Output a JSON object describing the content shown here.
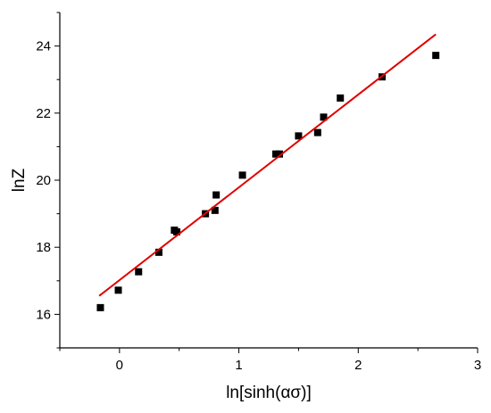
{
  "chart_data": {
    "type": "scatter",
    "title": "",
    "xlabel": "ln[sinh(ασ)]",
    "ylabel": "lnZ",
    "xlim": [
      -0.5,
      3.0
    ],
    "ylim": [
      15.0,
      25.0
    ],
    "x_ticks": [
      0,
      1,
      2,
      3
    ],
    "x_tick_labels": [
      "0",
      "1",
      "2",
      "3"
    ],
    "y_ticks": [
      16,
      18,
      20,
      22,
      24
    ],
    "y_tick_labels": [
      "16",
      "18",
      "20",
      "22",
      "24"
    ],
    "grid": false,
    "legend": "none",
    "series": [
      {
        "kind": "points",
        "marker": "square",
        "color": "#000000",
        "x": [
          -0.16,
          -0.01,
          0.16,
          0.33,
          0.46,
          0.48,
          0.72,
          0.8,
          0.81,
          1.03,
          1.31,
          1.34,
          1.5,
          1.66,
          1.71,
          1.85,
          2.2,
          2.65
        ],
        "y": [
          16.2,
          16.72,
          17.27,
          17.85,
          18.51,
          18.46,
          19.0,
          19.1,
          19.56,
          20.15,
          20.78,
          20.78,
          21.32,
          21.42,
          21.88,
          22.45,
          23.08,
          23.72
        ]
      },
      {
        "kind": "fit-line",
        "color": "#e00000",
        "x": [
          -0.17,
          2.65
        ],
        "y": [
          16.55,
          24.35
        ]
      }
    ]
  }
}
